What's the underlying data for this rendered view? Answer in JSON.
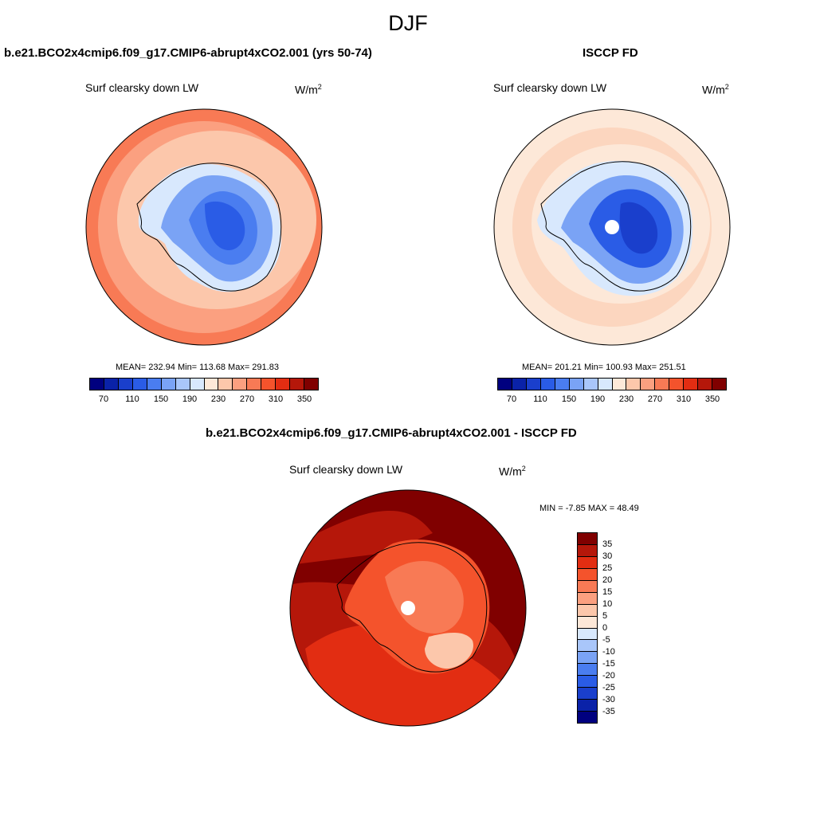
{
  "header": {
    "title": "DJF"
  },
  "panel_model": {
    "title": "b.e21.BCO2x4cmip6.f09_g17.CMIP6-abrupt4xCO2.001 (yrs 50-74)",
    "variable": "Surf clearsky down LW",
    "units_base": "W/m",
    "units_exp": "2",
    "stats": "MEAN= 232.94  Min= 113.68  Max= 291.83"
  },
  "panel_obs": {
    "title": "ISCCP FD",
    "variable": "Surf clearsky down LW",
    "units_base": "W/m",
    "units_exp": "2",
    "stats": "MEAN= 201.21  Min= 100.93  Max= 251.51"
  },
  "panel_diff": {
    "title": "b.e21.BCO2x4cmip6.f09_g17.CMIP6-abrupt4xCO2.001 - ISCCP FD",
    "variable": "Surf clearsky down LW",
    "units_base": "W/m",
    "units_exp": "2",
    "stats": "MIN =  -7.85 MAX =  48.49"
  },
  "colorbar_abs": {
    "colors": [
      "#00007f",
      "#0a22a8",
      "#1a3fcc",
      "#2a5ce6",
      "#4a7df0",
      "#7aa3f5",
      "#a9c6fa",
      "#d8e8fd",
      "#fde8d8",
      "#fcc7ab",
      "#fba080",
      "#f87a55",
      "#f4532c",
      "#e22d12",
      "#b5170a",
      "#800000"
    ],
    "ticks": [
      "70",
      "110",
      "150",
      "190",
      "230",
      "270",
      "310",
      "350"
    ]
  },
  "colorbar_diff": {
    "colors": [
      "#800000",
      "#b5170a",
      "#e22d12",
      "#f4532c",
      "#f87a55",
      "#fba080",
      "#fcc7ab",
      "#fde8d8",
      "#d8e8fd",
      "#a9c6fa",
      "#7aa3f5",
      "#4a7df0",
      "#2a5ce6",
      "#1a3fcc",
      "#0a22a8",
      "#00007f"
    ],
    "ticks": [
      "35",
      "30",
      "25",
      "20",
      "15",
      "10",
      "5",
      "0",
      "-5",
      "-10",
      "-15",
      "-20",
      "-25",
      "-30",
      "-35"
    ]
  }
}
